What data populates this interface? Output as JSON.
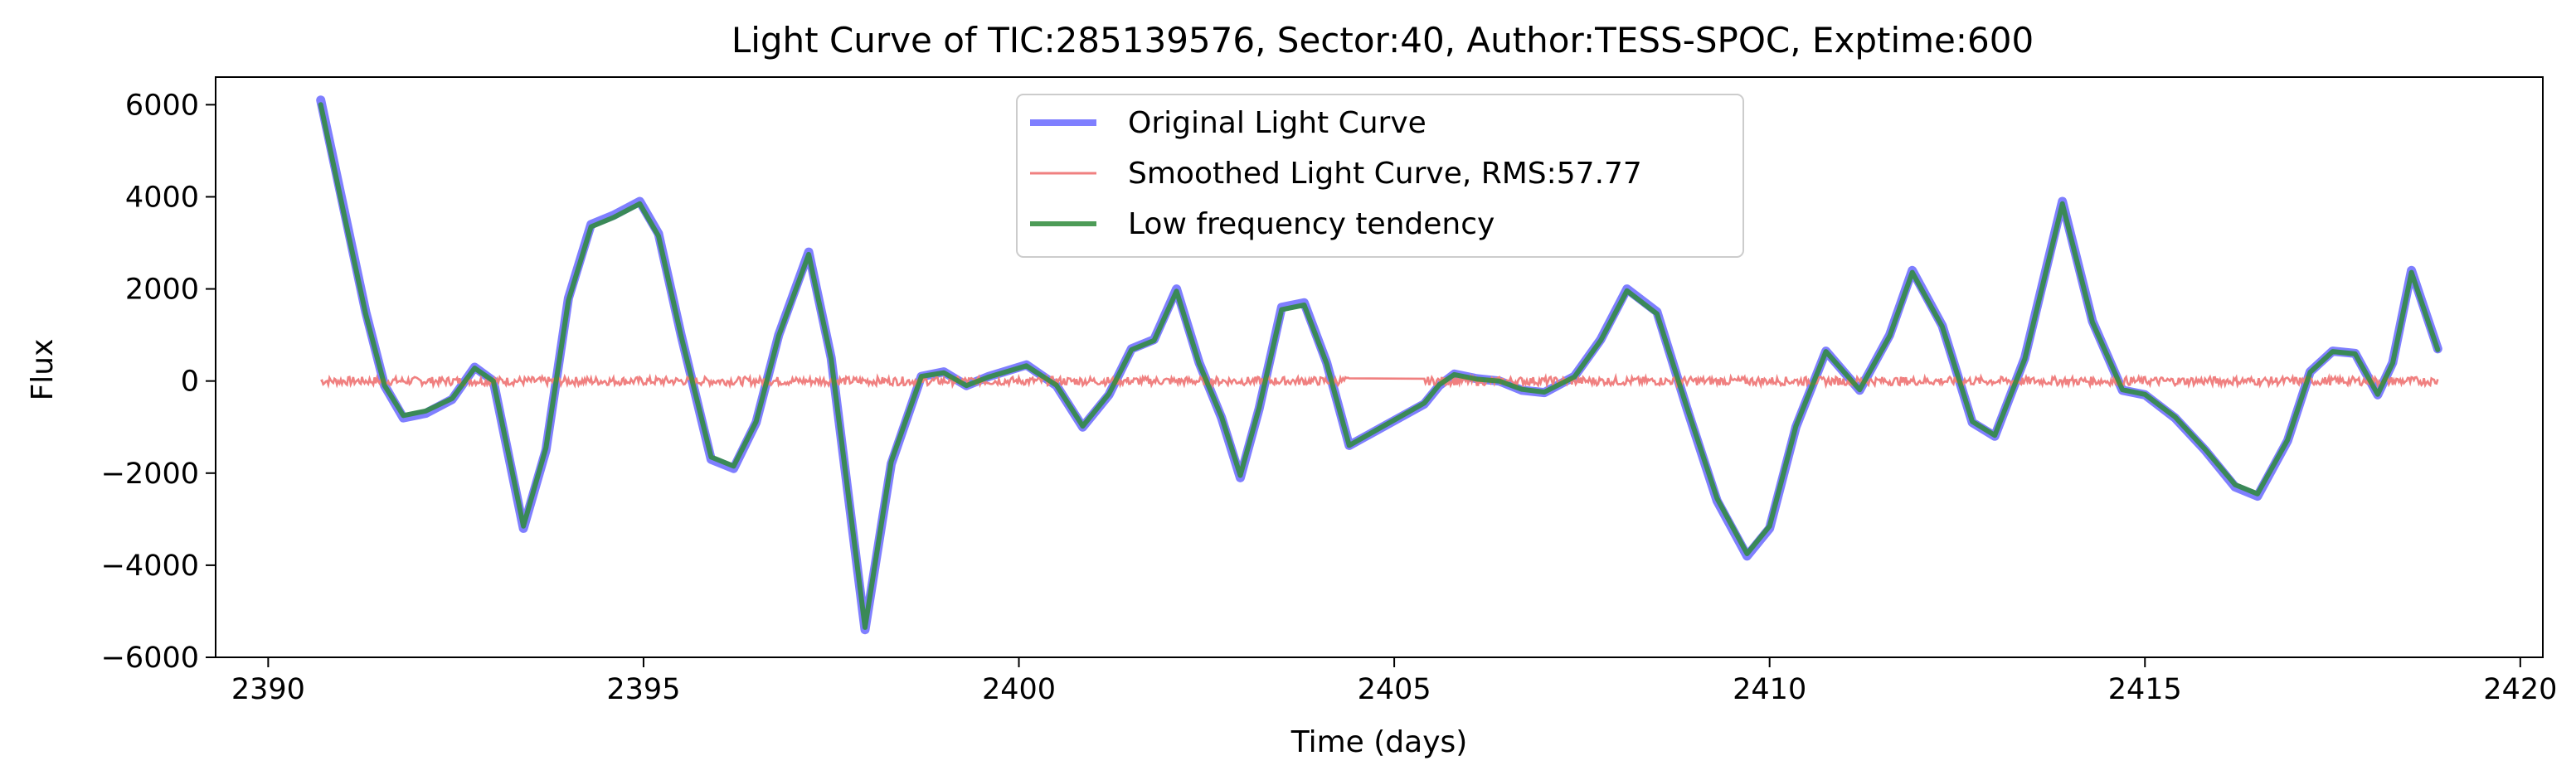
{
  "chart_data": {
    "type": "line",
    "title": "Light Curve of TIC:285139576, Sector:40, Author:TESS-SPOC, Exptime:600",
    "xlabel": "Time (days)",
    "ylabel": "Flux",
    "xlim": [
      2389.3,
      2420.3
    ],
    "ylim": [
      -6000,
      6600
    ],
    "xticks": [
      2390,
      2395,
      2400,
      2405,
      2410,
      2415,
      2420
    ],
    "xtick_labels": [
      "2390",
      "2395",
      "2400",
      "2405",
      "2410",
      "2415",
      "2420"
    ],
    "yticks": [
      -6000,
      -4000,
      -2000,
      0,
      2000,
      4000,
      6000
    ],
    "ytick_labels": [
      "−6000",
      "−4000",
      "−2000",
      "0",
      "2000",
      "4000",
      "6000"
    ],
    "grid": false,
    "legend_position": "top-center",
    "gap": [
      2404.4,
      2405.4
    ],
    "series": [
      {
        "name": "Original Light Curve",
        "color": "#0000ff",
        "opacity": 0.5,
        "x": [
          2390.7,
          2391.0,
          2391.3,
          2391.55,
          2391.8,
          2392.1,
          2392.45,
          2392.75,
          2393.0,
          2393.4,
          2393.7,
          2394.0,
          2394.3,
          2394.6,
          2394.95,
          2395.2,
          2395.5,
          2395.9,
          2396.2,
          2396.5,
          2396.8,
          2397.2,
          2397.5,
          2397.95,
          2398.3,
          2398.7,
          2399.0,
          2399.3,
          2399.6,
          2400.1,
          2400.5,
          2400.85,
          2401.2,
          2401.5,
          2401.8,
          2402.1,
          2402.4,
          2402.7,
          2402.95,
          2403.2,
          2403.5,
          2403.8,
          2404.1,
          2404.4,
          2405.4,
          2405.6,
          2405.8,
          2406.1,
          2406.4,
          2406.7,
          2407.0,
          2407.4,
          2407.75,
          2408.1,
          2408.5,
          2408.9,
          2409.3,
          2409.7,
          2410.0,
          2410.35,
          2410.75,
          2411.2,
          2411.6,
          2411.9,
          2412.3,
          2412.7,
          2413.0,
          2413.4,
          2413.9,
          2414.3,
          2414.7,
          2415.0,
          2415.4,
          2415.8,
          2416.2,
          2416.5,
          2416.9,
          2417.2,
          2417.5,
          2417.8,
          2418.1,
          2418.3,
          2418.55,
          2418.9
        ],
        "y": [
          6100,
          3800,
          1500,
          -100,
          -800,
          -700,
          -400,
          300,
          0,
          -3200,
          -1500,
          1800,
          3400,
          3600,
          3900,
          3200,
          1000,
          -1700,
          -1900,
          -900,
          1000,
          2800,
          500,
          -5400,
          -1800,
          100,
          200,
          -100,
          100,
          350,
          -100,
          -1000,
          -300,
          700,
          900,
          2000,
          400,
          -800,
          -2100,
          -600,
          1600,
          1700,
          400,
          -1400,
          -500,
          -100,
          150,
          50,
          0,
          -200,
          -250,
          100,
          900,
          2000,
          1500,
          -600,
          -2600,
          -3800,
          -3200,
          -1000,
          650,
          -200,
          1000,
          2400,
          1200,
          -900,
          -1200,
          500,
          3900,
          1300,
          -200,
          -300,
          -800,
          -1500,
          -2300,
          -2500,
          -1300,
          200,
          650,
          600,
          -300,
          400,
          2400,
          700
        ]
      },
      {
        "name": "Smoothed Light Curve, RMS:57.77",
        "color": "#f08080",
        "rms": 57.77,
        "x": [
          2390.7,
          2404.4,
          2405.4,
          2418.9
        ],
        "y": [
          0,
          0,
          0,
          0
        ]
      },
      {
        "name": "Low frequency tendency",
        "color": "#2e8b3a",
        "opacity": 0.85,
        "x": [
          2390.7,
          2391.0,
          2391.3,
          2391.55,
          2391.8,
          2392.1,
          2392.45,
          2392.75,
          2393.0,
          2393.4,
          2393.7,
          2394.0,
          2394.3,
          2394.6,
          2394.95,
          2395.2,
          2395.5,
          2395.9,
          2396.2,
          2396.5,
          2396.8,
          2397.2,
          2397.5,
          2397.95,
          2398.3,
          2398.7,
          2399.0,
          2399.3,
          2399.6,
          2400.1,
          2400.5,
          2400.85,
          2401.2,
          2401.5,
          2401.8,
          2402.1,
          2402.4,
          2402.7,
          2402.95,
          2403.2,
          2403.5,
          2403.8,
          2404.1,
          2404.4,
          2405.4,
          2405.6,
          2405.8,
          2406.1,
          2406.4,
          2406.7,
          2407.0,
          2407.4,
          2407.75,
          2408.1,
          2408.5,
          2408.9,
          2409.3,
          2409.7,
          2410.0,
          2410.35,
          2410.75,
          2411.2,
          2411.6,
          2411.9,
          2412.3,
          2412.7,
          2413.0,
          2413.4,
          2413.9,
          2414.3,
          2414.7,
          2415.0,
          2415.4,
          2415.8,
          2416.2,
          2416.5,
          2416.9,
          2417.2,
          2417.5,
          2417.8,
          2418.1,
          2418.3,
          2418.55,
          2418.9
        ],
        "y": [
          6000,
          3700,
          1450,
          -100,
          -750,
          -650,
          -380,
          280,
          0,
          -3150,
          -1450,
          1750,
          3350,
          3550,
          3850,
          3150,
          980,
          -1650,
          -1850,
          -880,
          980,
          2750,
          480,
          -5350,
          -1750,
          100,
          180,
          -100,
          90,
          330,
          -90,
          -980,
          -280,
          680,
          880,
          1950,
          380,
          -780,
          -2050,
          -580,
          1550,
          1650,
          380,
          -1400,
          -480,
          -80,
          140,
          40,
          0,
          -180,
          -240,
          90,
          880,
          1960,
          1460,
          -580,
          -2550,
          -3750,
          -3150,
          -980,
          640,
          -190,
          980,
          2360,
          1180,
          -880,
          -1180,
          480,
          3850,
          1280,
          -190,
          -290,
          -780,
          -1480,
          -2250,
          -2450,
          -1280,
          190,
          640,
          590,
          -290,
          390,
          2360,
          680
        ]
      }
    ]
  }
}
